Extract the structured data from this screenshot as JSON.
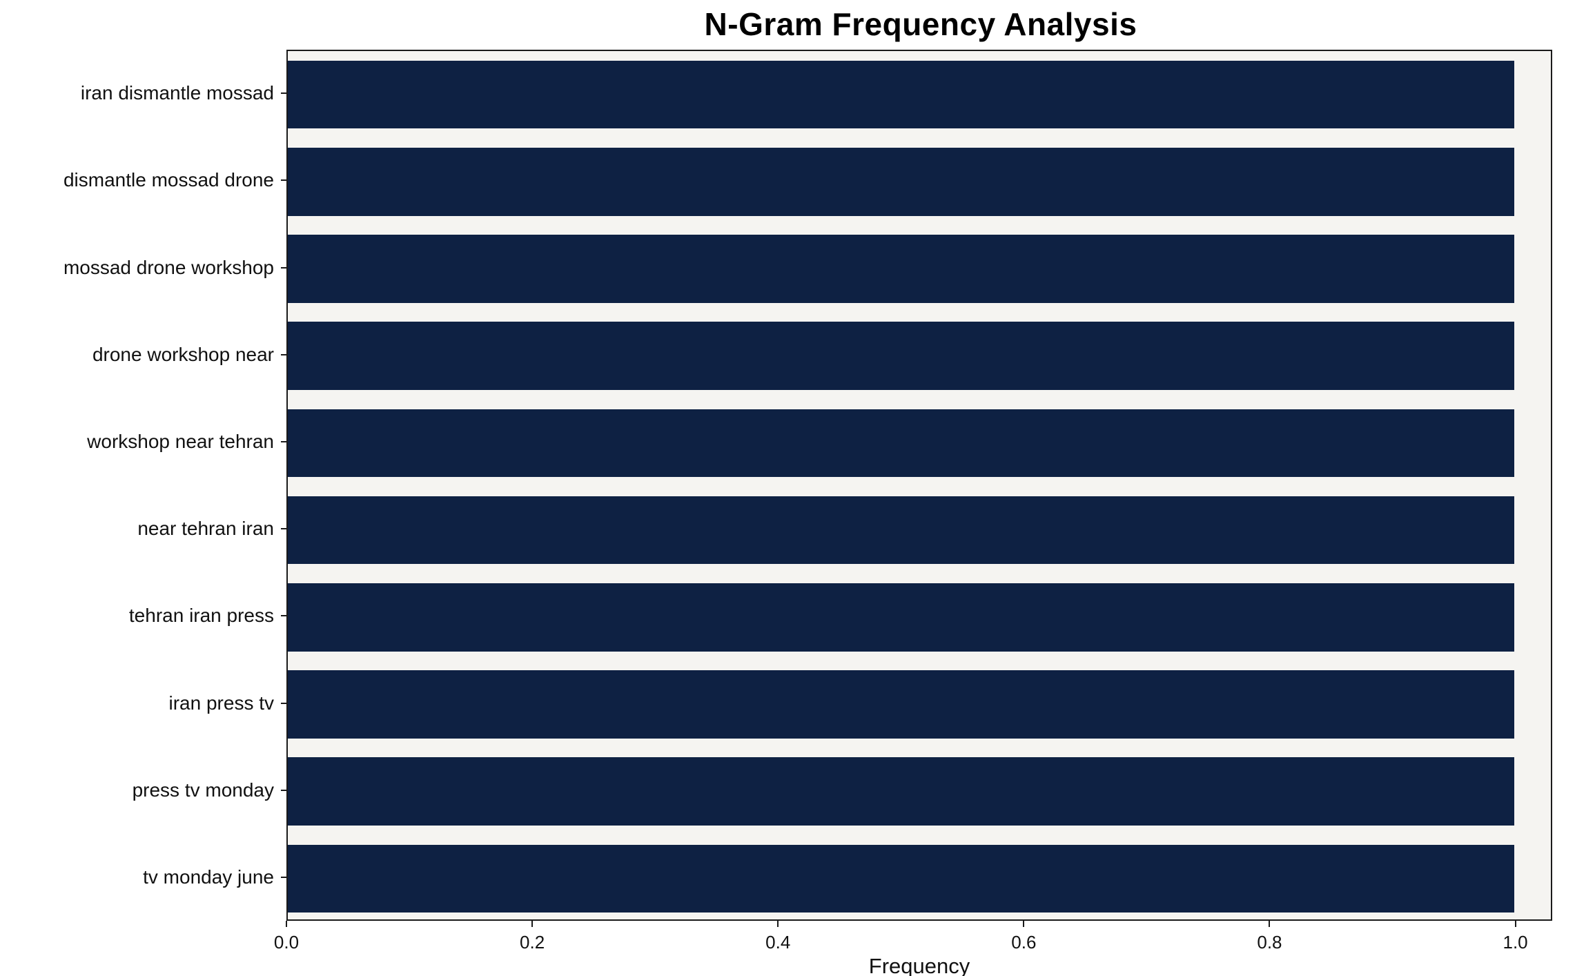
{
  "chart_data": {
    "type": "bar",
    "orientation": "horizontal",
    "title": "N-Gram Frequency Analysis",
    "xlabel": "Frequency",
    "ylabel": "",
    "categories": [
      "iran dismantle mossad",
      "dismantle mossad drone",
      "mossad drone workshop",
      "drone workshop near",
      "workshop near tehran",
      "near tehran iran",
      "tehran iran press",
      "iran press tv",
      "press tv monday",
      "tv monday june"
    ],
    "values": [
      1.0,
      1.0,
      1.0,
      1.0,
      1.0,
      1.0,
      1.0,
      1.0,
      1.0,
      1.0
    ],
    "xlim": [
      0,
      1.03
    ],
    "xticks": [
      0.0,
      0.2,
      0.4,
      0.6,
      0.8,
      1.0
    ],
    "xtick_labels": [
      "0.0",
      "0.2",
      "0.4",
      "0.6",
      "0.8",
      "1.0"
    ],
    "grid": false,
    "legend": null,
    "bar_color": "#0e2143",
    "plot_bg": "#f5f4f1",
    "bar_fraction": 0.78
  }
}
